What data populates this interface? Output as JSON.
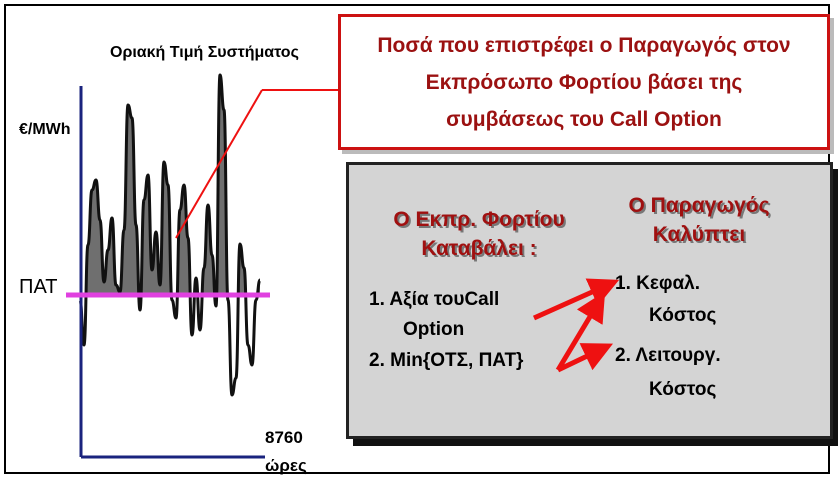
{
  "chart": {
    "title": "Οριακή Τιμή Συστήματος",
    "y_unit": "€/MWh",
    "pat_label": "ΠΑΤ",
    "x_max": "8760",
    "x_unit": "ώρες"
  },
  "callout": {
    "lines": [
      "Ποσά που επιστρέφει ο Παραγωγός στον",
      "Εκπρόσωπο Φορτίου βάσει της",
      "συμβάσεως του Call Option"
    ]
  },
  "settlement": {
    "payer_heading": [
      "Ο Εκπρ. Φορτίου",
      "Καταβάλει :"
    ],
    "payer_items": [
      "1. Αξία τουCall",
      "Option",
      "2. Min{ΟΤΣ, ΠΑΤ}"
    ],
    "generator_heading": [
      "Ο Παραγωγός",
      "Καλύπτει"
    ],
    "generator_items": [
      "1.  Κεφαλ.",
      "Κόστος",
      "2.  Λειτουργ.",
      "Κόστος"
    ]
  },
  "colors": {
    "callout_border": "#cc1111",
    "callout_text": "#9b1111",
    "heading_text": "#a01010",
    "box_fill": "#d4d4d4",
    "axis": "#1a237e",
    "pat_line": "#e040e0",
    "arrow": "#ee1111",
    "area_fill": "#6f6f6f"
  }
}
